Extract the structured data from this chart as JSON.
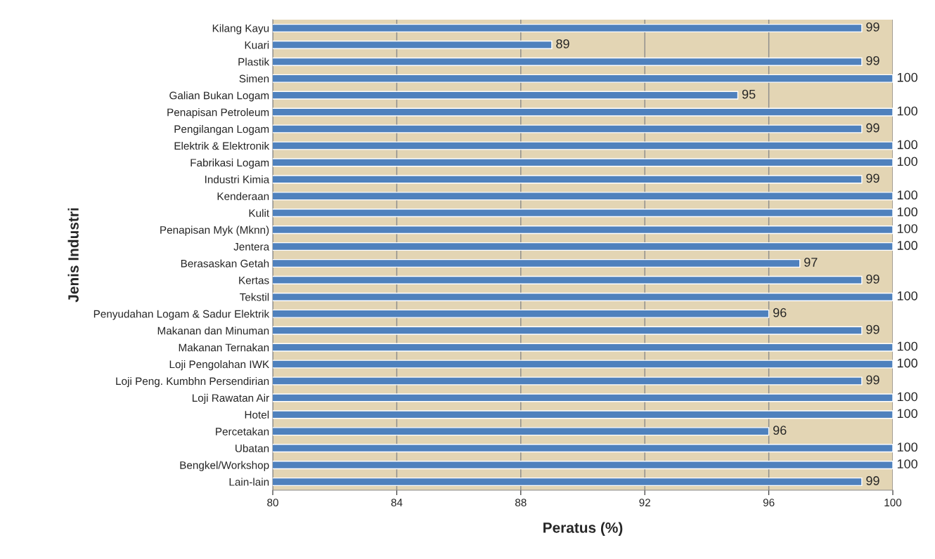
{
  "chart_data": {
    "type": "bar",
    "orientation": "horizontal",
    "xlabel": "Peratus (%)",
    "ylabel": "Jenis Industri",
    "categories": [
      "Kilang Kayu",
      "Kuari",
      "Plastik",
      "Simen",
      "Galian Bukan Logam",
      "Penapisan Petroleum",
      "Pengilangan Logam",
      "Elektrik & Elektronik",
      "Fabrikasi Logam",
      "Industri Kimia",
      "Kenderaan",
      "Kulit",
      "Penapisan Myk (Mknn)",
      "Jentera",
      "Berasaskan Getah",
      "Kertas",
      "Tekstil",
      "Penyudahan Logam & Sadur Elektrik",
      "Makanan dan Minuman",
      "Makanan Ternakan",
      "Loji Pengolahan IWK",
      "Loji Peng. Kumbhn Persendirian",
      "Loji Rawatan Air",
      "Hotel",
      "Percetakan",
      "Ubatan",
      "Bengkel/Workshop",
      "Lain-lain"
    ],
    "values": [
      99,
      89,
      99,
      100,
      95,
      100,
      99,
      100,
      100,
      99,
      100,
      100,
      100,
      100,
      97,
      99,
      100,
      96,
      99,
      100,
      100,
      99,
      100,
      100,
      96,
      100,
      100,
      99
    ],
    "color": "#4f81bd",
    "data_labels": true,
    "xlim": [
      80,
      100
    ],
    "xticks": [
      80,
      84,
      88,
      92,
      96,
      100
    ],
    "grid": "x",
    "legend": false
  }
}
